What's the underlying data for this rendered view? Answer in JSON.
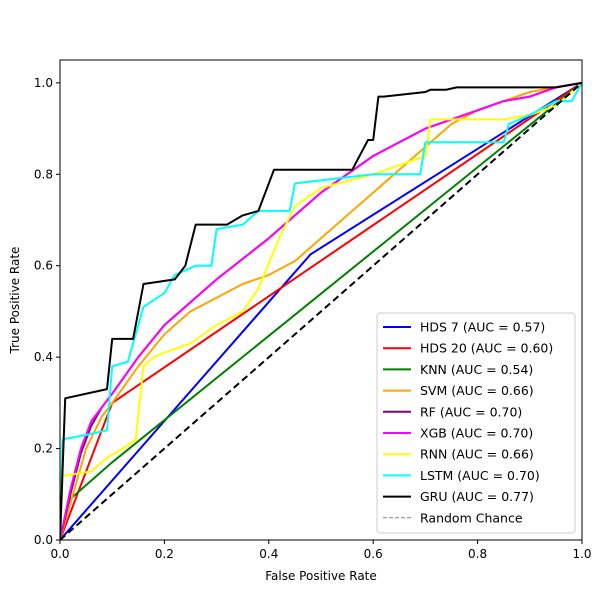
{
  "chart_data": {
    "type": "line",
    "title": "",
    "xlabel": "False Positive Rate",
    "ylabel": "True Positive Rate",
    "xlim": [
      0.0,
      1.0
    ],
    "ylim": [
      0.0,
      1.05
    ],
    "xticks": [
      "0.0",
      "0.2",
      "0.4",
      "0.6",
      "0.8",
      "1.0"
    ],
    "yticks": [
      "0.0",
      "0.2",
      "0.4",
      "0.6",
      "0.8",
      "1.0"
    ],
    "grid": false,
    "legend_position": "lower-right",
    "series": [
      {
        "name": "HDS 7 (AUC = 0.57)",
        "color": "#0000ff",
        "x": [
          0,
          0.48,
          1
        ],
        "y": [
          0,
          0.625,
          1
        ]
      },
      {
        "name": "HDS 20 (AUC = 0.60)",
        "color": "#ff0000",
        "x": [
          0,
          0.1,
          1
        ],
        "y": [
          0,
          0.3,
          1
        ]
      },
      {
        "name": "KNN (AUC = 0.54)",
        "color": "#008000",
        "x": [
          0,
          0.02,
          0.1,
          1
        ],
        "y": [
          0,
          0.09,
          0.17,
          1
        ]
      },
      {
        "name": "SVM (AUC = 0.66)",
        "color": "#ffa500",
        "x": [
          0,
          0.02,
          0.05,
          0.08,
          0.1,
          0.15,
          0.2,
          0.25,
          0.3,
          0.35,
          0.4,
          0.45,
          0.5,
          0.55,
          0.6,
          0.65,
          0.7,
          0.75,
          0.8,
          0.85,
          0.9,
          0.95,
          1
        ],
        "y": [
          0,
          0.08,
          0.2,
          0.27,
          0.3,
          0.38,
          0.45,
          0.5,
          0.53,
          0.56,
          0.58,
          0.61,
          0.66,
          0.71,
          0.76,
          0.81,
          0.86,
          0.91,
          0.94,
          0.96,
          0.98,
          0.99,
          1
        ]
      },
      {
        "name": "RF (AUC = 0.70)",
        "color": "#800080",
        "x": [
          0,
          0.02,
          0.04,
          0.06,
          0.08,
          0.1,
          0.15,
          0.2,
          0.3,
          0.4,
          0.5,
          0.6,
          0.65,
          0.7,
          0.8,
          0.85,
          0.9,
          0.95,
          1
        ],
        "y": [
          0,
          0.1,
          0.19,
          0.25,
          0.29,
          0.32,
          0.4,
          0.47,
          0.57,
          0.66,
          0.76,
          0.84,
          0.87,
          0.9,
          0.94,
          0.96,
          0.97,
          0.99,
          1
        ]
      },
      {
        "name": "XGB (AUC = 0.70)",
        "color": "#ff00ff",
        "x": [
          0,
          0.02,
          0.04,
          0.06,
          0.08,
          0.1,
          0.15,
          0.2,
          0.3,
          0.4,
          0.5,
          0.6,
          0.65,
          0.7,
          0.8,
          0.85,
          0.9,
          0.95,
          1
        ],
        "y": [
          0,
          0.11,
          0.2,
          0.26,
          0.29,
          0.32,
          0.4,
          0.47,
          0.57,
          0.66,
          0.76,
          0.84,
          0.87,
          0.9,
          0.94,
          0.96,
          0.97,
          0.99,
          1
        ]
      },
      {
        "name": "RNN (AUC = 0.66)",
        "color": "#ffff00",
        "x": [
          0,
          0.005,
          0.06,
          0.09,
          0.12,
          0.145,
          0.16,
          0.18,
          0.2,
          0.25,
          0.3,
          0.35,
          0.38,
          0.42,
          0.45,
          0.5,
          0.6,
          0.65,
          0.7,
          0.71,
          0.8,
          0.85,
          0.9,
          0.95,
          1
        ],
        "y": [
          0,
          0.14,
          0.15,
          0.18,
          0.2,
          0.22,
          0.38,
          0.4,
          0.41,
          0.43,
          0.47,
          0.5,
          0.55,
          0.66,
          0.73,
          0.77,
          0.8,
          0.82,
          0.84,
          0.92,
          0.92,
          0.92,
          0.93,
          0.95,
          1
        ]
      },
      {
        "name": "LSTM (AUC = 0.70)",
        "color": "#00ffff",
        "x": [
          0,
          0.005,
          0.05,
          0.09,
          0.1,
          0.13,
          0.16,
          0.2,
          0.22,
          0.24,
          0.26,
          0.29,
          0.3,
          0.35,
          0.38,
          0.44,
          0.45,
          0.6,
          0.69,
          0.7,
          0.85,
          0.86,
          0.9,
          0.95,
          0.98,
          1
        ],
        "y": [
          0,
          0.22,
          0.23,
          0.24,
          0.38,
          0.39,
          0.51,
          0.54,
          0.58,
          0.59,
          0.6,
          0.6,
          0.68,
          0.69,
          0.72,
          0.72,
          0.78,
          0.8,
          0.8,
          0.87,
          0.87,
          0.91,
          0.93,
          0.96,
          0.96,
          1
        ]
      },
      {
        "name": "GRU (AUC = 0.77)",
        "color": "#000000",
        "x": [
          0,
          0.01,
          0.09,
          0.1,
          0.14,
          0.16,
          0.22,
          0.24,
          0.26,
          0.29,
          0.32,
          0.35,
          0.38,
          0.41,
          0.56,
          0.59,
          0.6,
          0.61,
          0.62,
          0.7,
          0.71,
          0.74,
          0.76,
          0.9,
          0.95,
          1
        ],
        "y": [
          0,
          0.31,
          0.33,
          0.44,
          0.44,
          0.56,
          0.57,
          0.6,
          0.69,
          0.69,
          0.69,
          0.71,
          0.72,
          0.81,
          0.81,
          0.875,
          0.875,
          0.97,
          0.97,
          0.98,
          0.985,
          0.985,
          0.99,
          0.99,
          0.99,
          1
        ]
      }
    ],
    "reference_line": {
      "name": "Random Chance",
      "x": [
        0,
        1
      ],
      "y": [
        0,
        1
      ],
      "color": "#000000",
      "legend_color": "#808080"
    }
  }
}
